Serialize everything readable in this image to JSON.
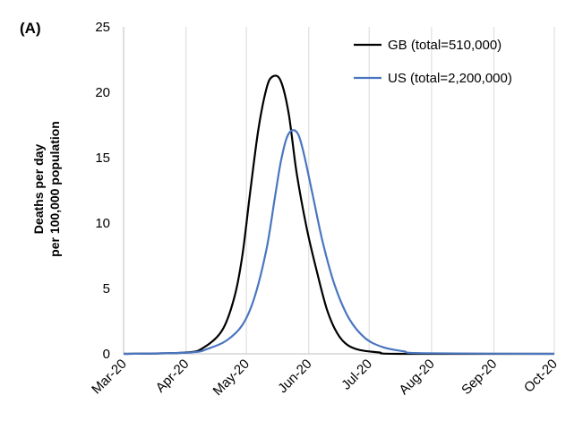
{
  "panel_label": "(A)",
  "chart_data": {
    "type": "line",
    "ylabel": [
      "Deaths per day",
      "per 100,000 population"
    ],
    "xlabel": "",
    "ylim": [
      0,
      25
    ],
    "yticks": [
      0,
      5,
      10,
      15,
      20,
      25
    ],
    "xlim": [
      "2020-03-01",
      "2020-10-01"
    ],
    "xticks": [
      {
        "date": "2020-03-01",
        "label": "Mar-20"
      },
      {
        "date": "2020-04-01",
        "label": "Apr-20"
      },
      {
        "date": "2020-05-01",
        "label": "May-20"
      },
      {
        "date": "2020-06-01",
        "label": "Jun-20"
      },
      {
        "date": "2020-07-01",
        "label": "Jul-20"
      },
      {
        "date": "2020-08-01",
        "label": "Aug-20"
      },
      {
        "date": "2020-09-01",
        "label": "Sep-20"
      },
      {
        "date": "2020-10-01",
        "label": "Oct-20"
      }
    ],
    "grid": "vertical",
    "legend_position": "top-right",
    "series": [
      {
        "name": "GB (total=510,000)",
        "color": "#000000",
        "points": [
          [
            "2020-03-01",
            0
          ],
          [
            "2020-04-01",
            0.1
          ],
          [
            "2020-04-10",
            0.5
          ],
          [
            "2020-04-19",
            1.8
          ],
          [
            "2020-04-25",
            4.3
          ],
          [
            "2020-04-29",
            7.5
          ],
          [
            "2020-05-03",
            12.5
          ],
          [
            "2020-05-07",
            17.2
          ],
          [
            "2020-05-11",
            20.3
          ],
          [
            "2020-05-14",
            21.2
          ],
          [
            "2020-05-18",
            20.9
          ],
          [
            "2020-05-22",
            18.4
          ],
          [
            "2020-05-26",
            13.8
          ],
          [
            "2020-05-31",
            9.6
          ],
          [
            "2020-06-05",
            6.3
          ],
          [
            "2020-06-10",
            3.4
          ],
          [
            "2020-06-15",
            1.6
          ],
          [
            "2020-06-20",
            0.7
          ],
          [
            "2020-06-26",
            0.3
          ],
          [
            "2020-07-06",
            0.1
          ],
          [
            "2020-07-16",
            0
          ],
          [
            "2020-10-01",
            0
          ]
        ]
      },
      {
        "name": "US (total=2,200,000)",
        "color": "#4a76c0",
        "points": [
          [
            "2020-03-01",
            0
          ],
          [
            "2020-04-03",
            0.1
          ],
          [
            "2020-04-12",
            0.4
          ],
          [
            "2020-04-21",
            1.0
          ],
          [
            "2020-04-29",
            2.2
          ],
          [
            "2020-05-05",
            4.3
          ],
          [
            "2020-05-11",
            8.0
          ],
          [
            "2020-05-15",
            11.8
          ],
          [
            "2020-05-18",
            14.6
          ],
          [
            "2020-05-21",
            16.5
          ],
          [
            "2020-05-24",
            17.1
          ],
          [
            "2020-05-27",
            16.7
          ],
          [
            "2020-05-30",
            15.0
          ],
          [
            "2020-06-03",
            12.1
          ],
          [
            "2020-06-08",
            8.5
          ],
          [
            "2020-06-14",
            5.2
          ],
          [
            "2020-06-21",
            2.7
          ],
          [
            "2020-06-29",
            1.2
          ],
          [
            "2020-07-08",
            0.5
          ],
          [
            "2020-07-18",
            0.2
          ],
          [
            "2020-07-28",
            0.05
          ],
          [
            "2020-10-01",
            0
          ]
        ]
      }
    ]
  }
}
